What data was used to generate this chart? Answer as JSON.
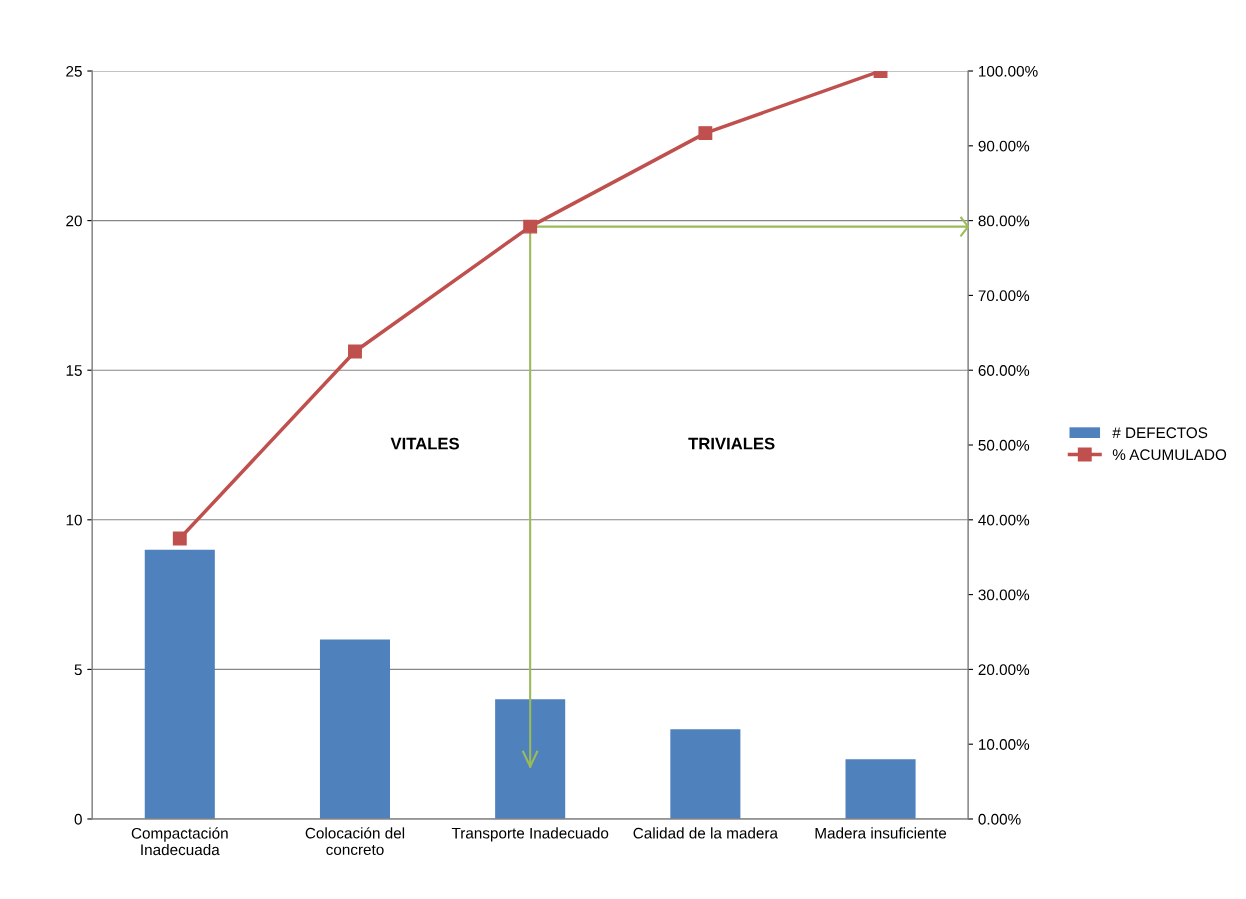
{
  "chart_data": {
    "type": "bar",
    "categories": [
      "Compactación\nInadecuada",
      "Colocación del\nconcreto",
      "Transporte Inadecuado",
      "Calidad de la madera",
      "Madera insuficiente"
    ],
    "series": [
      {
        "name": "# DEFECTOS",
        "color": "#4f81bd",
        "values": [
          9,
          6,
          4,
          3,
          2
        ]
      },
      {
        "name": "% ACUMULADO",
        "type": "line",
        "axis": "y2",
        "color": "#c0504d",
        "marker": "square",
        "values": [
          37.5,
          62.5,
          79.2,
          91.7,
          100
        ]
      }
    ],
    "ylim": [
      0,
      25
    ],
    "yticks": [
      0,
      5,
      10,
      15,
      20,
      25
    ],
    "y2lim": [
      0,
      100
    ],
    "y2ticks": [
      {
        "value": 0,
        "label": "0.00%"
      },
      {
        "value": 10,
        "label": "10.00%"
      },
      {
        "value": 20,
        "label": "20.00%"
      },
      {
        "value": 30,
        "label": "30.00%"
      },
      {
        "value": 40,
        "label": "40.00%"
      },
      {
        "value": 50,
        "label": "50.00%"
      },
      {
        "value": 60,
        "label": "60.00%"
      },
      {
        "value": 70,
        "label": "70.00%"
      },
      {
        "value": 80,
        "label": "80.00%"
      },
      {
        "value": 90,
        "label": "90.00%"
      },
      {
        "value": 100,
        "label": "100.00%"
      }
    ],
    "ref_lines": [
      {
        "axis": "y2",
        "value": 79.2,
        "color": "#9bbb59"
      },
      {
        "axis": "x",
        "value": "Transporte Inadecuado",
        "color": "#9bbb59"
      }
    ],
    "annotations": [
      "VITALES",
      "TRIVIALES"
    ],
    "grid": "y",
    "legend": "right"
  }
}
